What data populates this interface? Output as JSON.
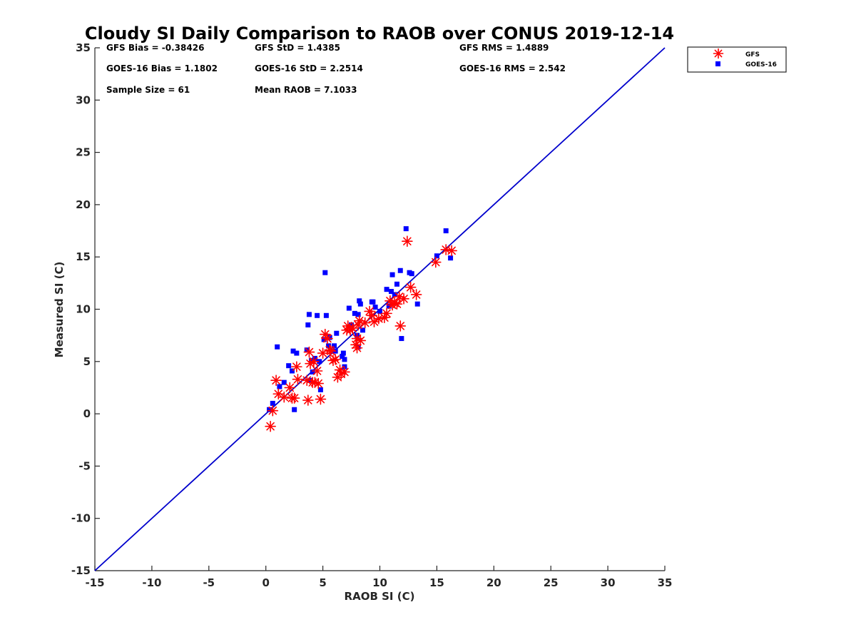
{
  "chart_data": {
    "type": "scatter",
    "title": "Cloudy SI Daily Comparison to RAOB over CONUS 2019-12-14",
    "xlabel": "RAOB SI (C)",
    "ylabel": "Measured SI (C)",
    "xlim": [
      -15,
      35
    ],
    "ylim": [
      -15,
      35
    ],
    "xticks": [
      -15,
      -10,
      -5,
      0,
      5,
      10,
      15,
      20,
      25,
      30,
      35
    ],
    "yticks": [
      -15,
      -10,
      -5,
      0,
      5,
      10,
      15,
      20,
      25,
      30,
      35
    ],
    "xtick_labels": [
      "-15",
      "-10",
      "-5",
      "0",
      "5",
      "10",
      "15",
      "20",
      "25",
      "30",
      "35"
    ],
    "ytick_labels": [
      "-15",
      "-10",
      "-5",
      "0",
      "5",
      "10",
      "15",
      "20",
      "25",
      "30",
      "35"
    ],
    "grid": false,
    "legend_position": "outside-top-right",
    "reference_line": {
      "from": [
        -15,
        -15
      ],
      "to": [
        35,
        35
      ],
      "color": "#0000cc"
    },
    "stats": {
      "gfs_bias": "GFS Bias = -0.38426",
      "gfs_std": "GFS StD = 1.4385",
      "gfs_rms": "GFS RMS = 1.4889",
      "goes_bias": "GOES-16 Bias = 1.1802",
      "goes_std": "GOES-16 StD = 2.2514",
      "goes_rms": "GOES-16 RMS = 2.542",
      "sample_size": "Sample Size = 61",
      "mean_raob": "Mean RAOB = 7.1033"
    },
    "series": [
      {
        "name": "GFS",
        "marker": "asterisk",
        "color": "#ff0000",
        "x": [
          0.4,
          0.6,
          0.9,
          1.1,
          1.6,
          2.1,
          2.3,
          2.5,
          2.7,
          2.8,
          3.6,
          3.7,
          3.8,
          4.1,
          4.3,
          4.5,
          4.6,
          4.8,
          5.0,
          5.2,
          5.4,
          5.7,
          5.9,
          6.1,
          6.3,
          6.6,
          6.9,
          7.2,
          7.4,
          7.6,
          7.9,
          8.0,
          8.0,
          8.1,
          8.2,
          8.3,
          9.3,
          9.5,
          9.9,
          10.4,
          10.6,
          10.9,
          11.1,
          11.3,
          11.5,
          11.7,
          11.8,
          12.4,
          12.7,
          13.2,
          14.9,
          15.8,
          16.3,
          3.9,
          4.2,
          5.6,
          6.5,
          7.1,
          8.7,
          9.1,
          12.1
        ],
        "y": [
          -1.2,
          0.3,
          3.2,
          1.9,
          1.6,
          2.5,
          1.5,
          1.5,
          4.5,
          3.3,
          3.2,
          1.3,
          5.9,
          3.0,
          3.0,
          4.1,
          2.9,
          1.4,
          5.8,
          7.6,
          7.2,
          6.0,
          5.1,
          5.2,
          3.5,
          3.8,
          4.0,
          8.4,
          8.0,
          8.2,
          6.6,
          6.3,
          7.2,
          8.5,
          8.9,
          7.0,
          9.4,
          8.8,
          9.1,
          9.2,
          9.6,
          10.8,
          10.4,
          10.6,
          10.5,
          11.2,
          8.4,
          16.5,
          12.1,
          11.4,
          14.5,
          15.7,
          15.6,
          4.8,
          5.0,
          6.1,
          4.2,
          8.0,
          8.7,
          9.8,
          11.0
        ]
      },
      {
        "name": "GOES-16",
        "marker": "square",
        "color": "#0000ff",
        "x": [
          0.3,
          0.6,
          1.0,
          1.2,
          1.6,
          2.0,
          2.3,
          2.4,
          2.5,
          2.7,
          3.6,
          3.7,
          3.8,
          4.0,
          4.3,
          4.5,
          4.7,
          4.8,
          5.1,
          5.2,
          5.3,
          5.6,
          5.8,
          6.0,
          6.2,
          6.7,
          6.8,
          6.9,
          7.3,
          7.5,
          7.8,
          8.0,
          8.1,
          8.1,
          8.2,
          8.3,
          9.3,
          9.6,
          10.0,
          10.6,
          10.8,
          11.0,
          11.1,
          11.3,
          11.5,
          11.8,
          11.9,
          12.3,
          12.6,
          13.3,
          15.0,
          15.8,
          16.2,
          3.9,
          4.1,
          5.5,
          6.1,
          6.9,
          8.5,
          9.4,
          12.8
        ],
        "y": [
          0.4,
          1.0,
          6.4,
          2.6,
          3.0,
          4.6,
          4.1,
          6.0,
          0.4,
          5.8,
          6.1,
          8.5,
          9.5,
          5.1,
          5.3,
          9.4,
          5.0,
          2.3,
          7.1,
          13.5,
          9.4,
          7.3,
          6.0,
          6.5,
          7.7,
          5.5,
          5.8,
          4.5,
          10.1,
          8.5,
          9.6,
          7.5,
          6.4,
          9.5,
          10.8,
          10.5,
          10.7,
          10.2,
          9.8,
          11.9,
          10.3,
          11.7,
          13.3,
          11.4,
          12.4,
          13.7,
          7.2,
          17.7,
          13.5,
          10.5,
          15.1,
          17.5,
          14.9,
          3.2,
          4.0,
          6.5,
          6.0,
          5.2,
          8.0,
          10.7,
          13.4
        ]
      }
    ]
  }
}
